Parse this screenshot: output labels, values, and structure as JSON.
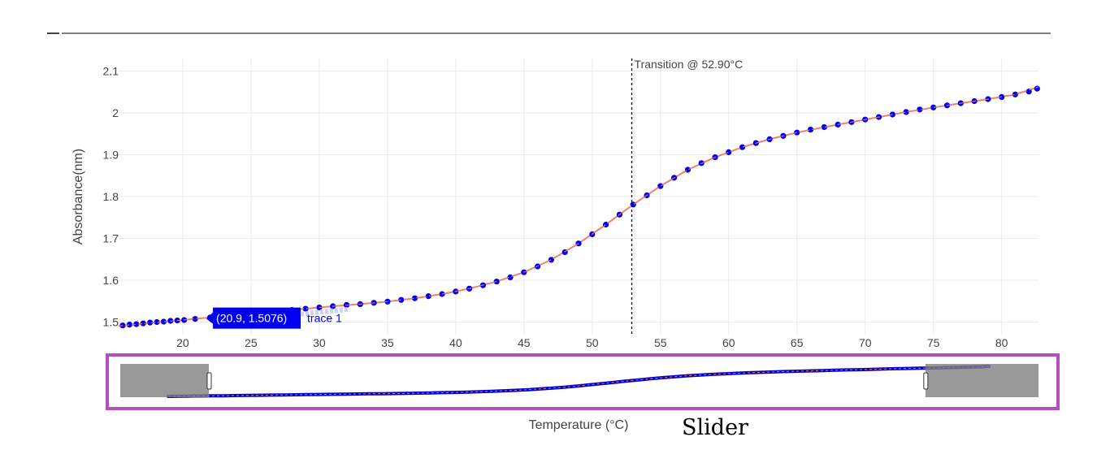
{
  "chart_data": {
    "type": "scatter",
    "title": "",
    "xlabel": "Temperature (°C)",
    "ylabel": "Absorbance(nm)",
    "xlim": [
      15.3,
      82.7
    ],
    "ylim": [
      1.47,
      2.13
    ],
    "x_ticks": [
      20,
      25,
      30,
      35,
      40,
      45,
      50,
      55,
      60,
      65,
      70,
      75,
      80
    ],
    "y_ticks": [
      1.5,
      1.6,
      1.7,
      1.8,
      1.9,
      2.0,
      2.1
    ],
    "x_tick_labels": [
      "20",
      "25",
      "30",
      "35",
      "40",
      "45",
      "50",
      "55",
      "60",
      "65",
      "70",
      "75",
      "80"
    ],
    "y_tick_labels": [
      "1.5",
      "1.6",
      "1.7",
      "1.8",
      "1.9",
      "2",
      "2.1"
    ],
    "grid": true,
    "series": [
      {
        "kind": "markers",
        "color": "#0000ee",
        "x": [
          15.6,
          16.1,
          16.6,
          17.1,
          17.6,
          18.1,
          18.6,
          19.1,
          19.6,
          20.1,
          20.9,
          22.0,
          23.0,
          24.0,
          25.0,
          26.0,
          27.0,
          28.0,
          29.0,
          30.0,
          31.0,
          32.0,
          33.0,
          34.0,
          35.0,
          36.0,
          37.0,
          38.0,
          39.0,
          40.0,
          41.0,
          42.0,
          43.0,
          44.0,
          45.0,
          46.0,
          47.0,
          48.0,
          49.0,
          50.0,
          51.0,
          52.0,
          53.0,
          54.0,
          55.0,
          56.0,
          57.0,
          58.0,
          59.0,
          60.0,
          61.0,
          62.0,
          63.0,
          64.0,
          65.0,
          66.0,
          67.0,
          68.0,
          69.0,
          70.0,
          71.0,
          72.0,
          73.0,
          74.0,
          75.0,
          76.0,
          77.0,
          78.0,
          79.0,
          80.0,
          81.0,
          82.0,
          82.6
        ],
        "y": [
          1.492,
          1.494,
          1.495,
          1.497,
          1.499,
          1.5,
          1.501,
          1.503,
          1.504,
          1.505,
          1.5076,
          1.511,
          1.514,
          1.517,
          1.52,
          1.523,
          1.526,
          1.529,
          1.532,
          1.535,
          1.538,
          1.541,
          1.543,
          1.546,
          1.549,
          1.553,
          1.557,
          1.562,
          1.567,
          1.573,
          1.58,
          1.588,
          1.597,
          1.607,
          1.619,
          1.633,
          1.649,
          1.667,
          1.688,
          1.71,
          1.733,
          1.757,
          1.781,
          1.803,
          1.825,
          1.845,
          1.864,
          1.88,
          1.894,
          1.906,
          1.918,
          1.928,
          1.937,
          1.945,
          1.953,
          1.96,
          1.966,
          1.972,
          1.978,
          1.984,
          1.99,
          1.996,
          2.002,
          2.008,
          2.013,
          2.018,
          2.023,
          2.028,
          2.033,
          2.038,
          2.044,
          2.051,
          2.058
        ]
      },
      {
        "kind": "line",
        "color": "#f08070",
        "x": [
          15.3,
          17.0,
          19.0,
          21.0,
          23.0,
          25.0,
          27.0,
          29.0,
          31.0,
          33.0,
          35.0,
          37.0,
          39.0,
          41.0,
          43.0,
          45.0,
          47.0,
          49.0,
          51.0,
          53.0,
          55.0,
          57.0,
          59.0,
          61.0,
          63.0,
          65.0,
          67.0,
          69.0,
          71.0,
          73.0,
          75.0,
          77.0,
          79.0,
          81.0,
          82.7
        ],
        "y": [
          1.491,
          1.496,
          1.502,
          1.508,
          1.514,
          1.52,
          1.526,
          1.532,
          1.538,
          1.543,
          1.549,
          1.557,
          1.567,
          1.58,
          1.597,
          1.619,
          1.649,
          1.688,
          1.733,
          1.781,
          1.825,
          1.864,
          1.894,
          1.918,
          1.937,
          1.953,
          1.966,
          1.978,
          1.99,
          2.002,
          2.013,
          2.023,
          2.033,
          2.044,
          2.062
        ]
      }
    ],
    "annotations": [
      {
        "type": "vline",
        "x": 52.9,
        "label": "Transition @ 52.90°C"
      }
    ],
    "hover": {
      "x": 20.9,
      "y": 1.5076,
      "label": "(20.9, 1.5076)",
      "trace_name": "trace 1",
      "color": "#0000ee"
    },
    "range_slider": {
      "range": [
        21.8,
        74.4
      ],
      "highlight_color": "#b44fc0",
      "caption": "Slider"
    }
  }
}
